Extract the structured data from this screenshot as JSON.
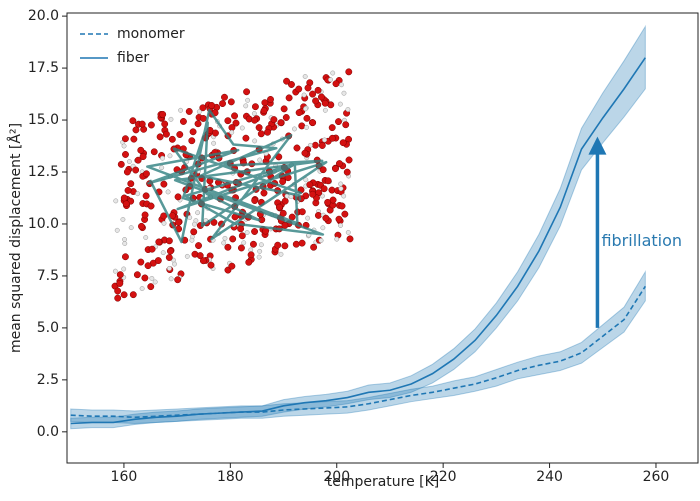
{
  "chart_data": {
    "type": "line",
    "xlabel": "temperature [K]",
    "ylabel": "mean squared displacement [Å²]",
    "x": [
      150,
      154,
      158,
      162,
      166,
      170,
      174,
      178,
      182,
      186,
      190,
      194,
      198,
      202,
      206,
      210,
      214,
      218,
      222,
      226,
      230,
      234,
      238,
      242,
      246,
      250,
      254,
      258
    ],
    "series": [
      {
        "name": "monomer",
        "color": "#1f77b4",
        "dash": true,
        "values": [
          0.8,
          0.75,
          0.75,
          0.7,
          0.75,
          0.8,
          0.85,
          0.9,
          0.95,
          0.95,
          1.05,
          1.1,
          1.15,
          1.2,
          1.35,
          1.55,
          1.75,
          1.9,
          2.1,
          2.3,
          2.6,
          2.95,
          3.2,
          3.4,
          3.8,
          4.6,
          5.4,
          7.0
        ],
        "error": [
          0.3,
          0.3,
          0.3,
          0.3,
          0.3,
          0.3,
          0.3,
          0.3,
          0.3,
          0.3,
          0.3,
          0.3,
          0.3,
          0.3,
          0.3,
          0.3,
          0.3,
          0.3,
          0.35,
          0.35,
          0.4,
          0.4,
          0.45,
          0.45,
          0.5,
          0.55,
          0.6,
          0.7
        ]
      },
      {
        "name": "fiber",
        "color": "#1f77b4",
        "dash": false,
        "values": [
          0.4,
          0.45,
          0.45,
          0.6,
          0.7,
          0.75,
          0.85,
          0.9,
          0.95,
          1.0,
          1.25,
          1.4,
          1.5,
          1.65,
          1.9,
          2.0,
          2.3,
          2.8,
          3.5,
          4.4,
          5.6,
          7.0,
          8.7,
          10.8,
          13.6,
          15.1,
          16.5,
          18.0
        ],
        "error": [
          0.25,
          0.25,
          0.25,
          0.25,
          0.25,
          0.25,
          0.25,
          0.25,
          0.25,
          0.25,
          0.3,
          0.3,
          0.3,
          0.3,
          0.35,
          0.35,
          0.4,
          0.45,
          0.5,
          0.55,
          0.6,
          0.7,
          0.8,
          0.9,
          1.0,
          1.2,
          1.35,
          1.5
        ]
      }
    ],
    "annotation": {
      "text": "fibrillation",
      "x": 249,
      "y_from": 5.0,
      "y_to": 14.2
    },
    "xlim": [
      149.3,
      267.9
    ],
    "ylim": [
      -1.5,
      20.15
    ],
    "xticks": [
      160,
      180,
      200,
      220,
      240,
      260
    ],
    "yticks": [
      {
        "value": 0,
        "label": "0.0"
      },
      2.5,
      {
        "value": 5,
        "label": "5.0"
      },
      7.5,
      {
        "value": 10,
        "label": "10.0"
      },
      12.5,
      {
        "value": 15,
        "label": "15.0"
      },
      17.5,
      {
        "value": 20,
        "label": "20.0"
      }
    ],
    "legend": "upper left"
  }
}
